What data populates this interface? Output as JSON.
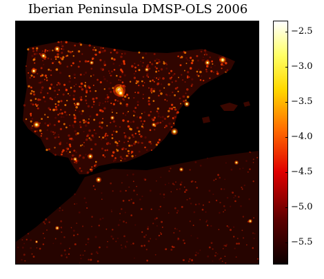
{
  "title": "Iberian Peninsula DMSP-OLS 2006",
  "map": {
    "region": "Iberian Peninsula and North Africa",
    "product": "DMSP-OLS night lights",
    "colormap": "hot",
    "colors": {
      "background": "#000000",
      "land_base": "#2a0300",
      "low": "#7a0a00",
      "mid": "#ff3a00",
      "high": "#ffd21a",
      "peak": "#ffffdc"
    }
  },
  "colorbar": {
    "min": -5.8,
    "max": -2.35,
    "ticks": [
      "−2.5",
      "−3.0",
      "−3.5",
      "−4.0",
      "−4.5",
      "−5.0",
      "−5.5"
    ],
    "tick_values": [
      -2.5,
      -3.0,
      -3.5,
      -4.0,
      -4.5,
      -5.0,
      -5.5
    ]
  }
}
